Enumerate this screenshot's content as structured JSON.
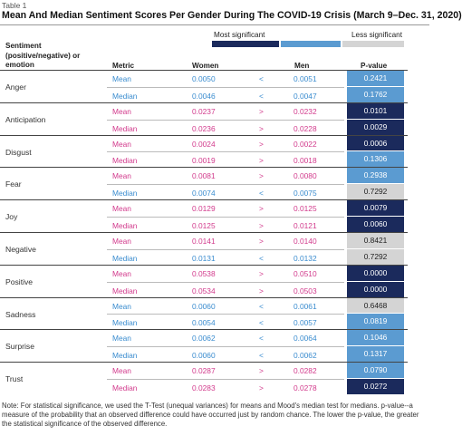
{
  "table_label": "Table 1",
  "title": "Mean And Median Sentiment Scores Per Gender During The COVID-19 Crisis (March 9–Dec. 31, 2020)",
  "legend": {
    "most": "Most significant",
    "less": "Less significant",
    "colors": [
      "#1b2a5c",
      "#5b9bd1",
      "#d4d4d4"
    ]
  },
  "headers": {
    "sentiment": "Sentiment (positive/negative) or emotion",
    "metric": "Metric",
    "women": "Women",
    "men": "Men",
    "pvalue": "P-value"
  },
  "colors": {
    "women_higher": "#d23a8c",
    "men_higher": "#3a8ccf"
  },
  "rows": [
    {
      "sentiment": "Anger",
      "items": [
        {
          "metric": "Mean",
          "women": "0.0050",
          "sign": "<",
          "men": "0.0051",
          "p": "0.2421",
          "level": "mid"
        },
        {
          "metric": "Median",
          "women": "0.0046",
          "sign": "<",
          "men": "0.0047",
          "p": "0.1762",
          "level": "mid"
        }
      ]
    },
    {
      "sentiment": "Anticipation",
      "items": [
        {
          "metric": "Mean",
          "women": "0.0237",
          "sign": ">",
          "men": "0.0232",
          "p": "0.0101",
          "level": "dark"
        },
        {
          "metric": "Median",
          "women": "0.0236",
          "sign": ">",
          "men": "0.0228",
          "p": "0.0029",
          "level": "dark"
        }
      ]
    },
    {
      "sentiment": "Disgust",
      "items": [
        {
          "metric": "Mean",
          "women": "0.0024",
          "sign": ">",
          "men": "0.0022",
          "p": "0.0006",
          "level": "dark"
        },
        {
          "metric": "Median",
          "women": "0.0019",
          "sign": ">",
          "men": "0.0018",
          "p": "0.1306",
          "level": "mid"
        }
      ]
    },
    {
      "sentiment": "Fear",
      "items": [
        {
          "metric": "Mean",
          "women": "0.0081",
          "sign": ">",
          "men": "0.0080",
          "p": "0.2938",
          "level": "mid"
        },
        {
          "metric": "Median",
          "women": "0.0074",
          "sign": "<",
          "men": "0.0075",
          "p": "0.7292",
          "level": "light"
        }
      ]
    },
    {
      "sentiment": "Joy",
      "items": [
        {
          "metric": "Mean",
          "women": "0.0129",
          "sign": ">",
          "men": "0.0125",
          "p": "0.0079",
          "level": "dark"
        },
        {
          "metric": "Median",
          "women": "0.0125",
          "sign": ">",
          "men": "0.0121",
          "p": "0.0060",
          "level": "dark"
        }
      ]
    },
    {
      "sentiment": "Negative",
      "items": [
        {
          "metric": "Mean",
          "women": "0.0141",
          "sign": ">",
          "men": "0.0140",
          "p": "0.8421",
          "level": "light"
        },
        {
          "metric": "Median",
          "women": "0.0131",
          "sign": "<",
          "men": "0.0132",
          "p": "0.7292",
          "level": "light"
        }
      ]
    },
    {
      "sentiment": "Positive",
      "items": [
        {
          "metric": "Mean",
          "women": "0.0538",
          "sign": ">",
          "men": "0.0510",
          "p": "0.0000",
          "level": "dark"
        },
        {
          "metric": "Median",
          "women": "0.0534",
          "sign": ">",
          "men": "0.0503",
          "p": "0.0000",
          "level": "dark"
        }
      ]
    },
    {
      "sentiment": "Sadness",
      "items": [
        {
          "metric": "Mean",
          "women": "0.0060",
          "sign": "<",
          "men": "0.0061",
          "p": "0.6468",
          "level": "light"
        },
        {
          "metric": "Median",
          "women": "0.0054",
          "sign": "<",
          "men": "0.0057",
          "p": "0.0819",
          "level": "mid"
        }
      ]
    },
    {
      "sentiment": "Surprise",
      "items": [
        {
          "metric": "Mean",
          "women": "0.0062",
          "sign": "<",
          "men": "0.0064",
          "p": "0.1046",
          "level": "mid"
        },
        {
          "metric": "Median",
          "women": "0.0060",
          "sign": "<",
          "men": "0.0062",
          "p": "0.1317",
          "level": "mid"
        }
      ]
    },
    {
      "sentiment": "Trust",
      "items": [
        {
          "metric": "Mean",
          "women": "0.0287",
          "sign": ">",
          "men": "0.0282",
          "p": "0.0790",
          "level": "mid"
        },
        {
          "metric": "Median",
          "women": "0.0283",
          "sign": ">",
          "men": "0.0278",
          "p": "0.0272",
          "level": "dark"
        }
      ]
    }
  ],
  "note": "Note: For statistical significance, we used the T-Test (unequal variances) for means and Mood's median test for medians. p-value--a measure of the probability that an observed difference could have occurred just by random chance. The lower the p-value, the greater the statistical significance of the observed difference."
}
